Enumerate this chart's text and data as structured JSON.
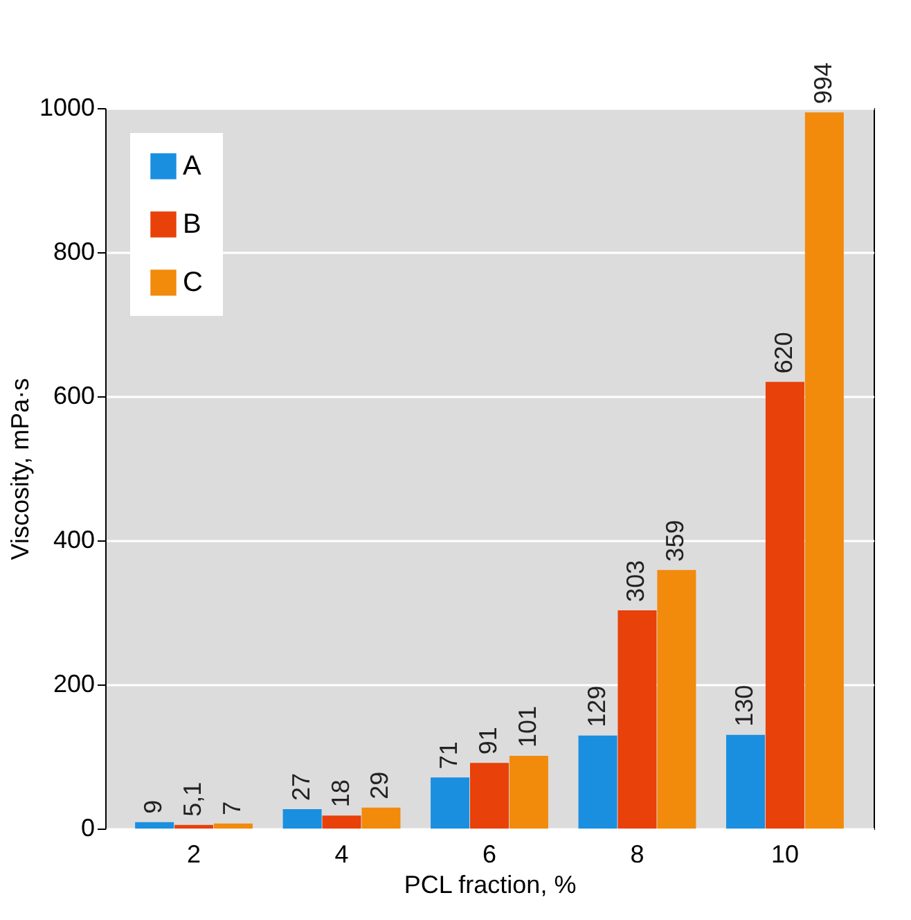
{
  "chart_data": {
    "type": "bar",
    "xlabel": "PCL fraction, %",
    "ylabel": "Viscosity, mPa·s",
    "categories": [
      "2",
      "4",
      "6",
      "8",
      "10"
    ],
    "series": [
      {
        "name": "A",
        "color": "#1a8fe0",
        "values": [
          9,
          27,
          71,
          129,
          130
        ],
        "value_labels": [
          "9",
          "27",
          "71",
          "129",
          "130"
        ]
      },
      {
        "name": "B",
        "color": "#e8410a",
        "values": [
          5.1,
          18,
          91,
          303,
          620
        ],
        "value_labels": [
          "5,1",
          "18",
          "91",
          "303",
          "620"
        ]
      },
      {
        "name": "C",
        "color": "#f28a0c",
        "values": [
          7,
          29,
          101,
          359,
          994
        ],
        "value_labels": [
          "7",
          "29",
          "101",
          "359",
          "994"
        ]
      }
    ],
    "ylim": [
      0,
      1000
    ],
    "yticks": [
      0,
      200,
      400,
      600,
      800,
      1000
    ],
    "grid": "y",
    "legend": "top left"
  }
}
